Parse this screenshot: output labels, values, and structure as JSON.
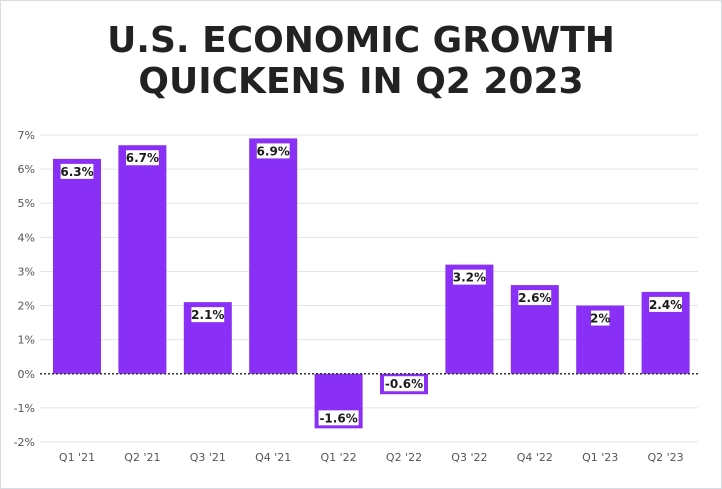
{
  "title_lines": [
    "U.S. ECONOMIC GROWTH",
    "QUICKENS IN Q2 2023"
  ],
  "colors": {
    "bar": "#8a2ff5",
    "grid": "#e1e4ea",
    "zero_line": "#333333",
    "label_bg": "#ffffff"
  },
  "chart_data": {
    "type": "bar",
    "title": "U.S. ECONOMIC GROWTH QUICKENS IN Q2 2023",
    "xlabel": "",
    "ylabel": "",
    "categories": [
      "Q1 '21",
      "Q2 '21",
      "Q3 '21",
      "Q4 '21",
      "Q1 '22",
      "Q2 '22",
      "Q3 '22",
      "Q4 '22",
      "Q1 '23",
      "Q2 '23"
    ],
    "values": [
      6.3,
      6.7,
      2.1,
      6.9,
      -1.6,
      -0.6,
      3.2,
      2.6,
      2,
      2.4
    ],
    "value_labels": [
      "6.3%",
      "6.7%",
      "2.1%",
      "6.9%",
      "-1.6%",
      "-0.6%",
      "3.2%",
      "2.6%",
      "2%",
      "2.4%"
    ],
    "ylim": [
      -2,
      7
    ],
    "yticks": [
      7,
      6,
      5,
      4,
      3,
      2,
      1,
      0,
      -1,
      -2
    ],
    "ytick_labels": [
      "7%",
      "6%",
      "5%",
      "4%",
      "3%",
      "2%",
      "1%",
      "0%",
      "-1%",
      "-2%"
    ],
    "grid": true,
    "legend": "none"
  }
}
